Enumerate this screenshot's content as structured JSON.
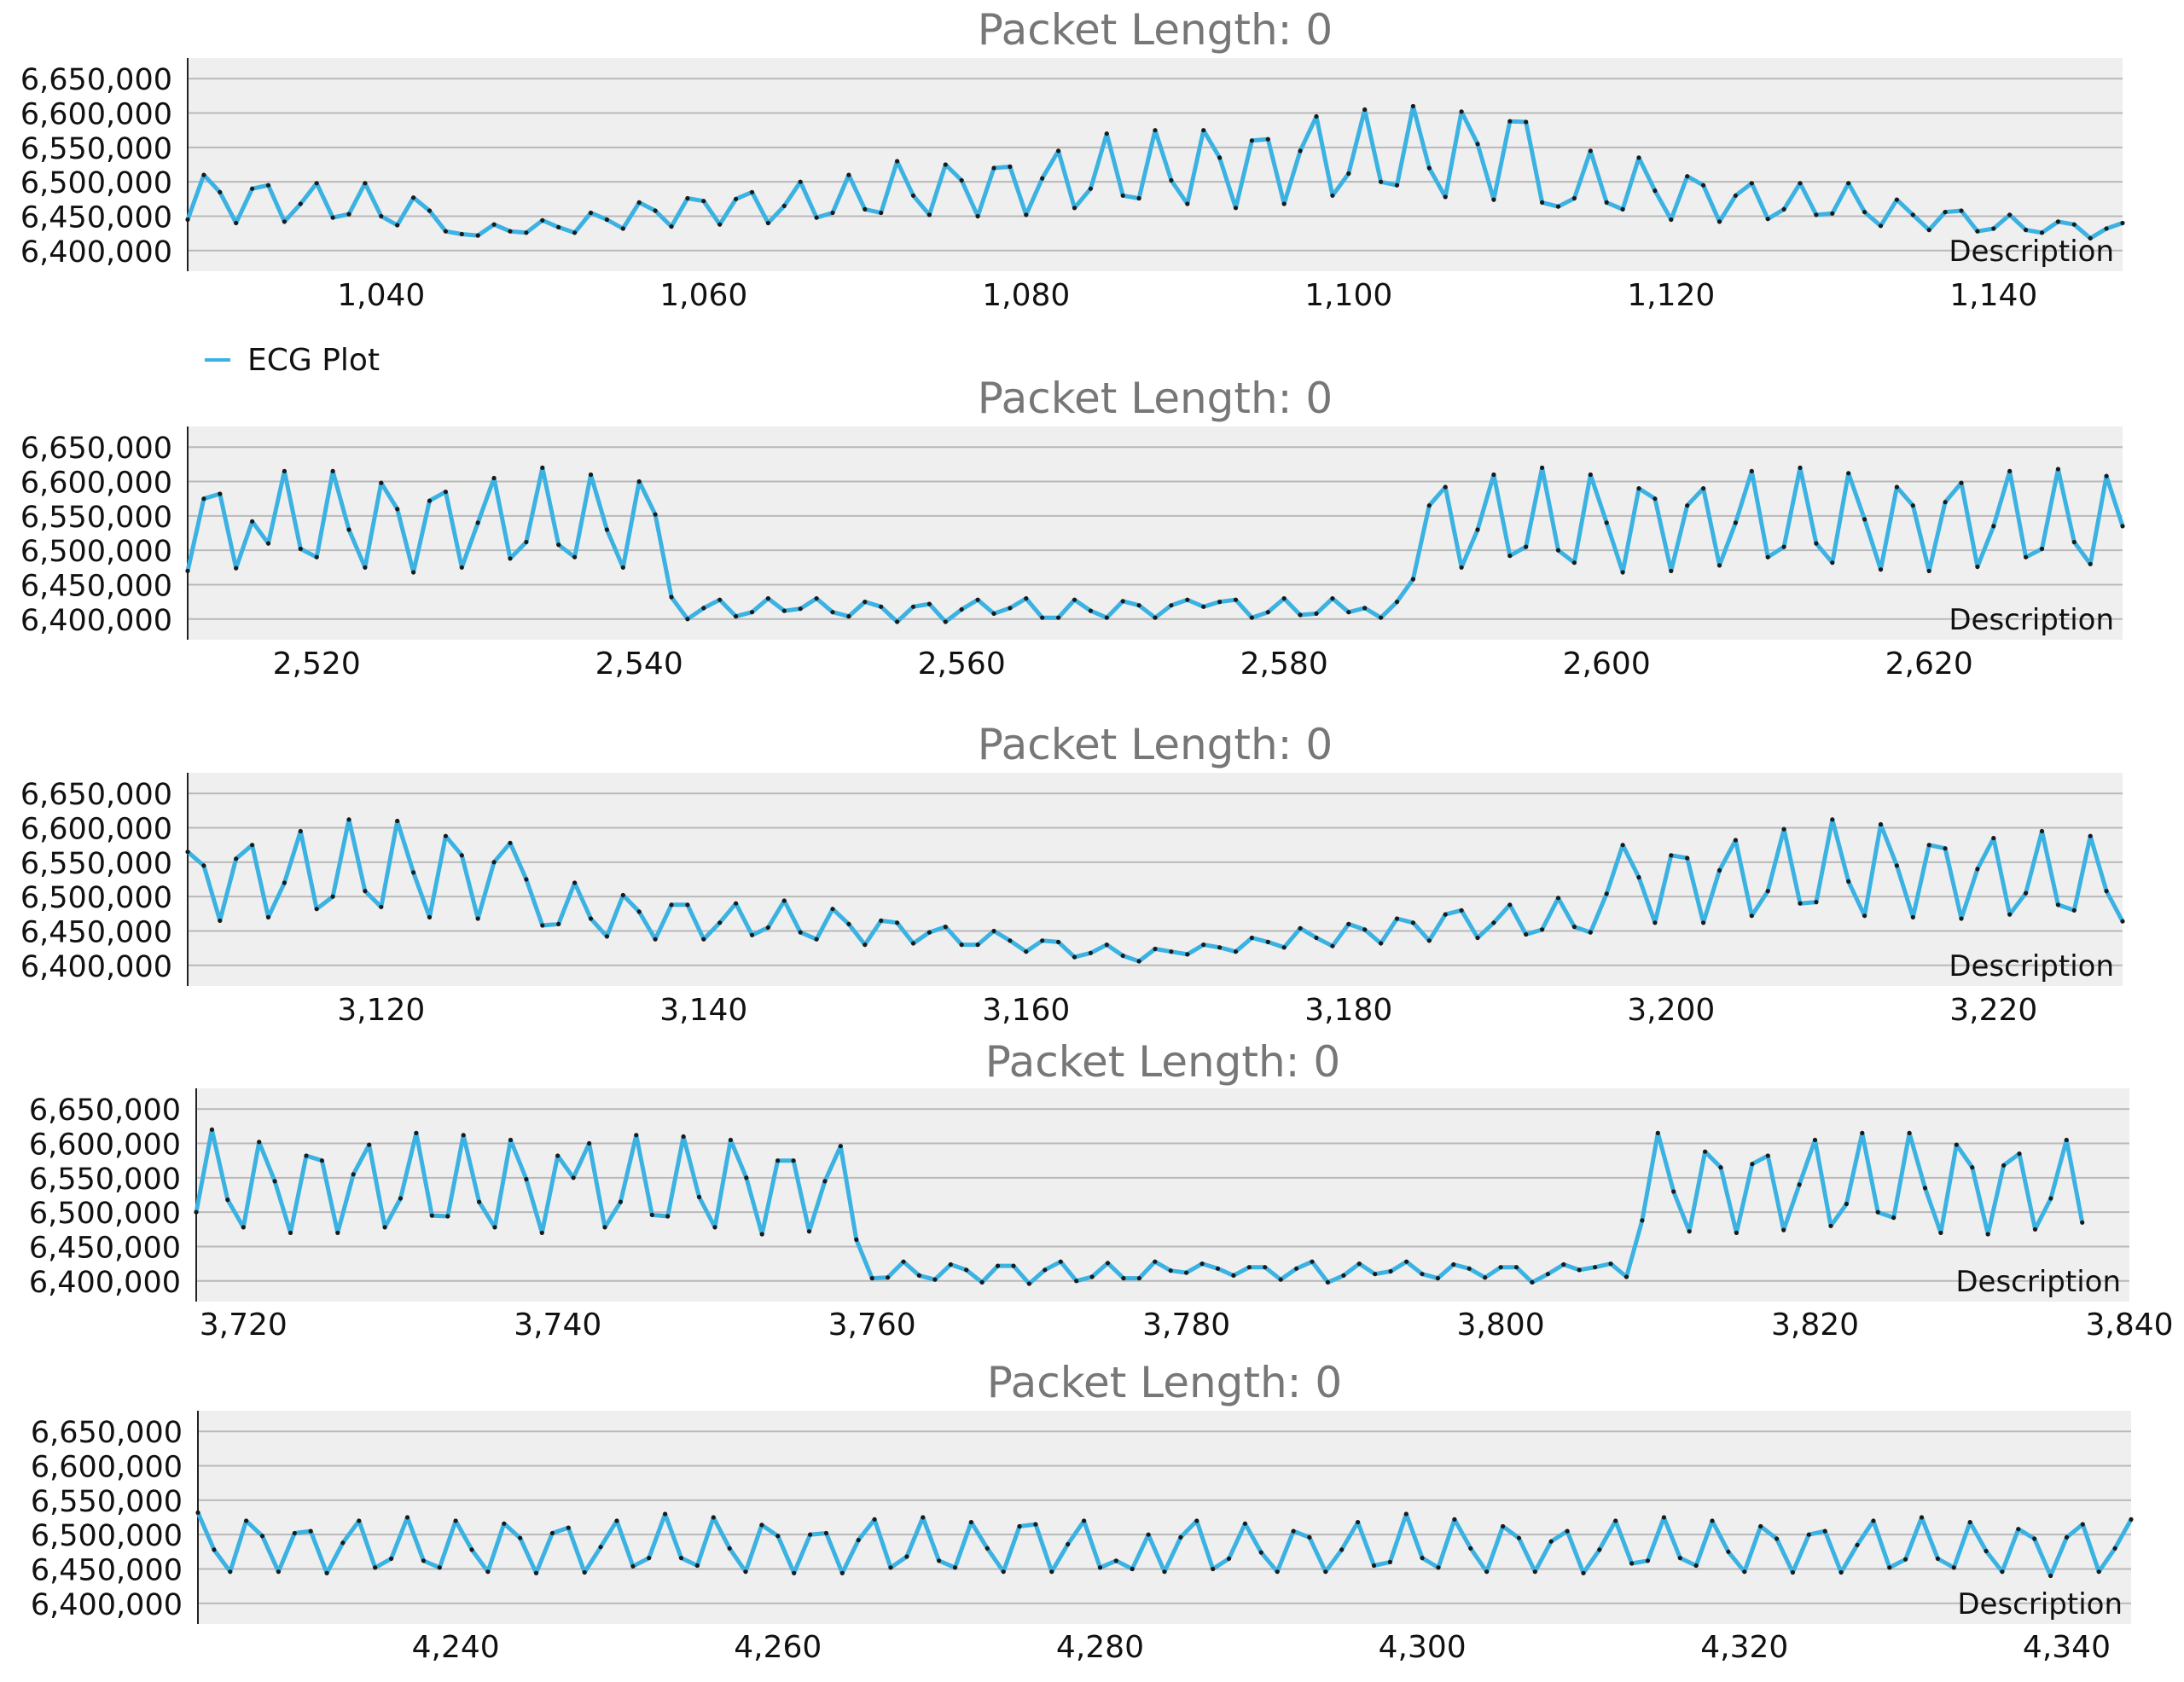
{
  "chart_data": [
    {
      "type": "line",
      "title": "Packet Length: 0",
      "description": "Description",
      "yticks": [
        "6,650,000",
        "6,600,000",
        "6,550,000",
        "6,500,000",
        "6,450,000",
        "6,400,000"
      ],
      "yvalues": [
        6650000,
        6600000,
        6550000,
        6500000,
        6450000,
        6400000
      ],
      "ylim": [
        6370000,
        6680000
      ],
      "xlim": [
        1028,
        1148
      ],
      "xticks": [
        {
          "v": 1040,
          "label": "1,040"
        },
        {
          "v": 1060,
          "label": "1,060"
        },
        {
          "v": 1080,
          "label": "1,080"
        },
        {
          "v": 1100,
          "label": "1,100"
        },
        {
          "v": 1120,
          "label": "1,120"
        },
        {
          "v": 1140,
          "label": "1,140"
        }
      ],
      "series": [
        {
          "name": "ECG Plot",
          "x_start": 1028,
          "values": [
            6445000,
            6510000,
            6485000,
            6440000,
            6490000,
            6495000,
            6442000,
            6468000,
            6498000,
            6448000,
            6453000,
            6498000,
            6450000,
            6437000,
            6477000,
            6458000,
            6428000,
            6424000,
            6422000,
            6438000,
            6428000,
            6426000,
            6444000,
            6434000,
            6426000,
            6455000,
            6445000,
            6432000,
            6470000,
            6458000,
            6435000,
            6476000,
            6472000,
            6438000,
            6475000,
            6485000,
            6440000,
            6465000,
            6500000,
            6448000,
            6455000,
            6510000,
            6460000,
            6455000,
            6530000,
            6480000,
            6452000,
            6525000,
            6502000,
            6450000,
            6520000,
            6522000,
            6452000,
            6505000,
            6545000,
            6462000,
            6490000,
            6570000,
            6480000,
            6476000,
            6575000,
            6502000,
            6468000,
            6575000,
            6535000,
            6462000,
            6560000,
            6562000,
            6468000,
            6545000,
            6595000,
            6480000,
            6512000,
            6605000,
            6500000,
            6495000,
            6610000,
            6520000,
            6478000,
            6602000,
            6555000,
            6474000,
            6588000,
            6587000,
            6470000,
            6464000,
            6476000,
            6545000,
            6470000,
            6460000,
            6535000,
            6487000,
            6445000,
            6508000,
            6495000,
            6442000,
            6480000,
            6498000,
            6446000,
            6460000,
            6498000,
            6452000,
            6454000,
            6498000,
            6456000,
            6436000,
            6474000,
            6452000,
            6430000,
            6456000,
            6458000,
            6428000,
            6432000,
            6452000,
            6430000,
            6426000,
            6442000,
            6438000,
            6418000,
            6432000,
            6440000
          ]
        }
      ],
      "legend": {
        "label": "ECG Plot"
      }
    },
    {
      "type": "line",
      "title": "Packet Length: 0",
      "description": "Description",
      "yticks": [
        "6,650,000",
        "6,600,000",
        "6,550,000",
        "6,500,000",
        "6,450,000",
        "6,400,000"
      ],
      "yvalues": [
        6650000,
        6600000,
        6550000,
        6500000,
        6450000,
        6400000
      ],
      "ylim": [
        6370000,
        6680000
      ],
      "xlim": [
        2512,
        2632
      ],
      "xticks": [
        {
          "v": 2520,
          "label": "2,520"
        },
        {
          "v": 2540,
          "label": "2,540"
        },
        {
          "v": 2560,
          "label": "2,560"
        },
        {
          "v": 2580,
          "label": "2,580"
        },
        {
          "v": 2600,
          "label": "2,600"
        },
        {
          "v": 2620,
          "label": "2,620"
        }
      ],
      "series": [
        {
          "name": "ECG Plot",
          "x_start": 2512,
          "values": [
            6470000,
            6575000,
            6582000,
            6474000,
            6542000,
            6510000,
            6615000,
            6502000,
            6490000,
            6615000,
            6530000,
            6475000,
            6598000,
            6560000,
            6468000,
            6572000,
            6585000,
            6475000,
            6540000,
            6605000,
            6488000,
            6512000,
            6620000,
            6508000,
            6490000,
            6610000,
            6530000,
            6475000,
            6600000,
            6552000,
            6432000,
            6400000,
            6416000,
            6428000,
            6404000,
            6410000,
            6430000,
            6412000,
            6415000,
            6430000,
            6410000,
            6404000,
            6425000,
            6418000,
            6396000,
            6418000,
            6422000,
            6396000,
            6414000,
            6428000,
            6408000,
            6416000,
            6430000,
            6402000,
            6402000,
            6428000,
            6412000,
            6402000,
            6426000,
            6420000,
            6402000,
            6420000,
            6428000,
            6418000,
            6425000,
            6428000,
            6402000,
            6410000,
            6430000,
            6406000,
            6408000,
            6430000,
            6410000,
            6416000,
            6402000,
            6425000,
            6458000,
            6565000,
            6592000,
            6475000,
            6530000,
            6610000,
            6492000,
            6505000,
            6620000,
            6500000,
            6482000,
            6610000,
            6540000,
            6468000,
            6590000,
            6575000,
            6470000,
            6565000,
            6590000,
            6478000,
            6540000,
            6615000,
            6490000,
            6505000,
            6620000,
            6510000,
            6482000,
            6612000,
            6545000,
            6472000,
            6592000,
            6565000,
            6470000,
            6570000,
            6598000,
            6476000,
            6535000,
            6615000,
            6490000,
            6502000,
            6618000,
            6512000,
            6480000,
            6608000,
            6535000
          ]
        }
      ]
    },
    {
      "type": "line",
      "title": "Packet Length: 0",
      "description": "Description",
      "yticks": [
        "6,650,000",
        "6,600,000",
        "6,550,000",
        "6,500,000",
        "6,450,000",
        "6,400,000"
      ],
      "yvalues": [
        6650000,
        6600000,
        6550000,
        6500000,
        6450000,
        6400000
      ],
      "ylim": [
        6370000,
        6680000
      ],
      "xlim": [
        3108,
        3228
      ],
      "xticks": [
        {
          "v": 3120,
          "label": "3,120"
        },
        {
          "v": 3140,
          "label": "3,140"
        },
        {
          "v": 3160,
          "label": "3,160"
        },
        {
          "v": 3180,
          "label": "3,180"
        },
        {
          "v": 3200,
          "label": "3,200"
        },
        {
          "v": 3220,
          "label": "3,220"
        }
      ],
      "series": [
        {
          "name": "ECG Plot",
          "x_start": 3108,
          "values": [
            6565000,
            6545000,
            6465000,
            6555000,
            6575000,
            6470000,
            6520000,
            6595000,
            6482000,
            6500000,
            6612000,
            6508000,
            6485000,
            6610000,
            6535000,
            6470000,
            6588000,
            6560000,
            6468000,
            6550000,
            6578000,
            6525000,
            6458000,
            6460000,
            6520000,
            6468000,
            6442000,
            6502000,
            6478000,
            6438000,
            6488000,
            6488000,
            6438000,
            6462000,
            6490000,
            6444000,
            6455000,
            6494000,
            6448000,
            6438000,
            6482000,
            6460000,
            6430000,
            6465000,
            6462000,
            6432000,
            6448000,
            6456000,
            6430000,
            6430000,
            6450000,
            6436000,
            6420000,
            6436000,
            6434000,
            6412000,
            6418000,
            6430000,
            6414000,
            6406000,
            6424000,
            6420000,
            6416000,
            6430000,
            6426000,
            6420000,
            6440000,
            6434000,
            6426000,
            6454000,
            6440000,
            6428000,
            6460000,
            6452000,
            6432000,
            6468000,
            6462000,
            6436000,
            6474000,
            6480000,
            6440000,
            6462000,
            6488000,
            6445000,
            6452000,
            6498000,
            6456000,
            6448000,
            6504000,
            6575000,
            6528000,
            6462000,
            6560000,
            6556000,
            6462000,
            6538000,
            6582000,
            6472000,
            6508000,
            6598000,
            6490000,
            6492000,
            6612000,
            6522000,
            6472000,
            6605000,
            6545000,
            6470000,
            6575000,
            6570000,
            6468000,
            6540000,
            6585000,
            6474000,
            6505000,
            6595000,
            6488000,
            6480000,
            6588000,
            6508000,
            6464000
          ]
        }
      ]
    },
    {
      "type": "line",
      "title": "Packet Length: 0",
      "description": "Description",
      "yticks": [
        "6,650,000",
        "6,600,000",
        "6,550,000",
        "6,500,000",
        "6,450,000",
        "6,400,000"
      ],
      "yvalues": [
        6650000,
        6600000,
        6550000,
        6500000,
        6450000,
        6400000
      ],
      "ylim": [
        6370000,
        6680000
      ],
      "xlim": [
        3717,
        3840
      ],
      "xticks": [
        {
          "v": 3720,
          "label": "3,720"
        },
        {
          "v": 3740,
          "label": "3,740"
        },
        {
          "v": 3760,
          "label": "3,760"
        },
        {
          "v": 3780,
          "label": "3,780"
        },
        {
          "v": 3800,
          "label": "3,800"
        },
        {
          "v": 3820,
          "label": "3,820"
        },
        {
          "v": 3840,
          "label": "3,840"
        }
      ],
      "series": [
        {
          "name": "ECG Plot",
          "x_start": 3717,
          "values": [
            6500000,
            6620000,
            6518000,
            6478000,
            6602000,
            6545000,
            6470000,
            6582000,
            6575000,
            6470000,
            6555000,
            6598000,
            6478000,
            6520000,
            6615000,
            6495000,
            6494000,
            6612000,
            6515000,
            6478000,
            6605000,
            6548000,
            6470000,
            6582000,
            6550000,
            6600000,
            6478000,
            6515000,
            6612000,
            6496000,
            6494000,
            6610000,
            6522000,
            6478000,
            6605000,
            6550000,
            6468000,
            6575000,
            6575000,
            6472000,
            6545000,
            6596000,
            6460000,
            6404000,
            6405000,
            6428000,
            6408000,
            6402000,
            6424000,
            6416000,
            6398000,
            6422000,
            6422000,
            6396000,
            6416000,
            6428000,
            6400000,
            6406000,
            6426000,
            6404000,
            6404000,
            6428000,
            6415000,
            6412000,
            6425000,
            6418000,
            6408000,
            6420000,
            6420000,
            6402000,
            6418000,
            6428000,
            6398000,
            6408000,
            6425000,
            6410000,
            6414000,
            6428000,
            6410000,
            6404000,
            6424000,
            6418000,
            6405000,
            6420000,
            6420000,
            6398000,
            6410000,
            6424000,
            6416000,
            6420000,
            6425000,
            6406000,
            6488000,
            6615000,
            6530000,
            6472000,
            6588000,
            6565000,
            6470000,
            6570000,
            6582000,
            6474000,
            6540000,
            6605000,
            6480000,
            6512000,
            6615000,
            6500000,
            6492000,
            6615000,
            6535000,
            6470000,
            6598000,
            6565000,
            6468000,
            6568000,
            6585000,
            6475000,
            6520000,
            6605000,
            6485000
          ]
        }
      ]
    },
    {
      "type": "line",
      "title": "Packet Length: 0",
      "description": "Description",
      "yticks": [
        "6,650,000",
        "6,600,000",
        "6,550,000",
        "6,500,000",
        "6,450,000",
        "6,400,000"
      ],
      "yvalues": [
        6650000,
        6600000,
        6550000,
        6500000,
        6450000,
        6400000
      ],
      "ylim": [
        6370000,
        6680000
      ],
      "xlim": [
        4224,
        4344
      ],
      "xticks": [
        {
          "v": 4240,
          "label": "4,240"
        },
        {
          "v": 4260,
          "label": "4,260"
        },
        {
          "v": 4280,
          "label": "4,280"
        },
        {
          "v": 4300,
          "label": "4,300"
        },
        {
          "v": 4320,
          "label": "4,320"
        },
        {
          "v": 4340,
          "label": "4,340"
        }
      ],
      "series": [
        {
          "name": "ECG Plot",
          "x_start": 4224,
          "values": [
            6532000,
            6478000,
            6446000,
            6520000,
            6498000,
            6446000,
            6502000,
            6505000,
            6444000,
            6488000,
            6520000,
            6452000,
            6465000,
            6525000,
            6462000,
            6452000,
            6520000,
            6478000,
            6446000,
            6516000,
            6495000,
            6444000,
            6502000,
            6510000,
            6445000,
            6482000,
            6520000,
            6454000,
            6466000,
            6530000,
            6466000,
            6455000,
            6525000,
            6480000,
            6446000,
            6514000,
            6498000,
            6444000,
            6500000,
            6502000,
            6444000,
            6492000,
            6522000,
            6452000,
            6468000,
            6525000,
            6462000,
            6452000,
            6518000,
            6480000,
            6446000,
            6512000,
            6515000,
            6446000,
            6486000,
            6520000,
            6452000,
            6462000,
            6450000,
            6500000,
            6446000,
            6496000,
            6520000,
            6450000,
            6465000,
            6516000,
            6474000,
            6446000,
            6505000,
            6496000,
            6446000,
            6478000,
            6518000,
            6455000,
            6460000,
            6530000,
            6466000,
            6452000,
            6522000,
            6480000,
            6446000,
            6512000,
            6495000,
            6446000,
            6490000,
            6505000,
            6444000,
            6478000,
            6520000,
            6458000,
            6462000,
            6525000,
            6466000,
            6455000,
            6520000,
            6475000,
            6446000,
            6512000,
            6494000,
            6445000,
            6500000,
            6505000,
            6445000,
            6485000,
            6520000,
            6452000,
            6464000,
            6525000,
            6465000,
            6452000,
            6518000,
            6476000,
            6446000,
            6508000,
            6494000,
            6440000,
            6496000,
            6515000,
            6446000,
            6480000,
            6522000
          ]
        }
      ]
    }
  ],
  "colors": {
    "line": "#3bb2e2",
    "point": "#1a1a1a",
    "plot_bg": "#efefef",
    "grid": "#b9b9b9",
    "title": "#777777"
  }
}
